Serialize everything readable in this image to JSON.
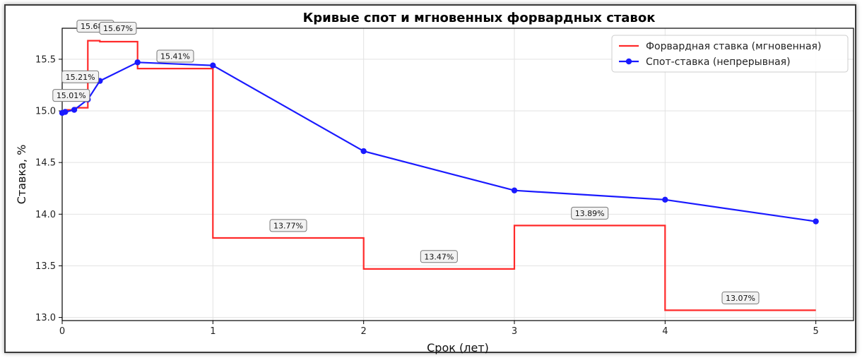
{
  "chart_data": {
    "type": "line",
    "title": "Кривые спот и мгновенных форвардных ставок",
    "xlabel": "Срок (лет)",
    "ylabel": "Ставка, %",
    "xlim": [
      0,
      5.25
    ],
    "ylim": [
      12.97,
      15.8
    ],
    "x_ticks": [
      0,
      1,
      2,
      3,
      4,
      5
    ],
    "x_tick_labels": [
      "0",
      "1",
      "2",
      "3",
      "4",
      "5"
    ],
    "y_ticks": [
      13.0,
      13.5,
      14.0,
      14.5,
      15.0,
      15.5
    ],
    "y_tick_labels": [
      "13.0",
      "13.5",
      "14.0",
      "14.5",
      "15.0",
      "15.5"
    ],
    "grid": true,
    "legend_position": "top-right",
    "series": [
      {
        "name": "Форвардная ставка (мгновенная)",
        "style": "step",
        "color": "#ff2a2a",
        "points": [
          [
            0,
            14.98
          ],
          [
            0.02,
            14.98
          ],
          [
            0.02,
            15.01
          ],
          [
            0.08,
            15.01
          ],
          [
            0.08,
            15.03
          ],
          [
            0.17,
            15.03
          ],
          [
            0.17,
            15.21
          ],
          [
            0.17,
            15.68
          ],
          [
            0.25,
            15.68
          ],
          [
            0.25,
            15.67
          ],
          [
            0.5,
            15.67
          ],
          [
            0.5,
            15.41
          ],
          [
            1,
            15.41
          ],
          [
            1,
            13.77
          ],
          [
            2,
            13.77
          ],
          [
            2,
            13.47
          ],
          [
            3,
            13.47
          ],
          [
            3,
            13.89
          ],
          [
            4,
            13.89
          ],
          [
            4,
            13.07
          ],
          [
            5,
            13.07
          ]
        ]
      },
      {
        "name": "Спот-ставка (непрерывная)",
        "style": "line-markers",
        "color": "#1a1aff",
        "points": [
          [
            0,
            14.98
          ],
          [
            0.02,
            14.99
          ],
          [
            0.08,
            15.01
          ],
          [
            0.17,
            15.11
          ],
          [
            0.25,
            15.29
          ],
          [
            0.5,
            15.47
          ],
          [
            1,
            15.44
          ],
          [
            2,
            14.61
          ],
          [
            3,
            14.23
          ],
          [
            4,
            14.14
          ],
          [
            5,
            13.93
          ]
        ]
      }
    ],
    "annotations": [
      {
        "text": "15.68%",
        "x": 0.22,
        "y": 15.82
      },
      {
        "text": "15.67%",
        "x": 0.37,
        "y": 15.8
      },
      {
        "text": "15.41%",
        "x": 0.75,
        "y": 15.53
      },
      {
        "text": "15.21%",
        "x": 0.12,
        "y": 15.33
      },
      {
        "text": "15.01%",
        "x": 0.06,
        "y": 15.15
      },
      {
        "text": "13.77%",
        "x": 1.5,
        "y": 13.89
      },
      {
        "text": "13.47%",
        "x": 2.5,
        "y": 13.59
      },
      {
        "text": "13.89%",
        "x": 3.5,
        "y": 14.01
      },
      {
        "text": "13.07%",
        "x": 4.5,
        "y": 13.19
      }
    ]
  }
}
